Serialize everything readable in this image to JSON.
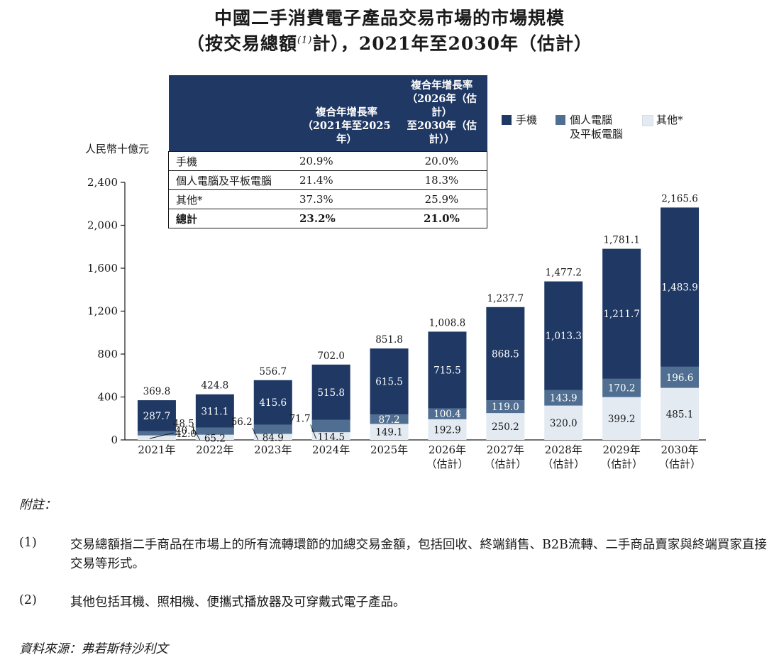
{
  "title": {
    "line1": "中國二手消費電子產品交易市場的市場規模",
    "line2_pre": "（按交易總額",
    "line2_sup": "(1)",
    "line2_post": "計），2021年至2030年（估計）"
  },
  "cagr_table": {
    "header_col1": "",
    "header_col2": "複合年增長率\n（2021年至2025年）",
    "header_col3": "複合年增長率\n（2026年（估計）\n至2030年（估計））",
    "rows": [
      {
        "label": "手機",
        "c1": "20.9%",
        "c2": "20.0%"
      },
      {
        "label": "個人電腦及平板電腦",
        "c1": "21.4%",
        "c2": "18.3%"
      },
      {
        "label": "其他*",
        "c1": "37.3%",
        "c2": "25.9%"
      },
      {
        "label": "總計",
        "c1": "23.2%",
        "c2": "21.0%"
      }
    ]
  },
  "legend": [
    {
      "label": "手機",
      "color": "#1f3864"
    },
    {
      "label": "個人電腦\n及平板電腦",
      "color": "#4f6e91"
    },
    {
      "label": "其他*",
      "color": "#e3eaf2"
    }
  ],
  "colors": {
    "phone": "#1f3864",
    "pc": "#4f6e91",
    "other": "#e3eaf2"
  },
  "chart_data": {
    "type": "bar",
    "stacked": true,
    "ylabel": "人民幣十億元",
    "ylim": [
      0,
      2400
    ],
    "yticks": [
      "0",
      "400",
      "800",
      "1,200",
      "1,600",
      "2,000",
      "2,400"
    ],
    "categories": [
      "2021年",
      "2022年",
      "2023年",
      "2024年",
      "2025年",
      "2026年\n（估計）",
      "2027年\n（估計）",
      "2028年\n（估計）",
      "2029年\n（估計）",
      "2030年\n（估計）"
    ],
    "series": [
      {
        "name": "其他*",
        "values": [
          42.0,
          48.5,
          56.2,
          71.7,
          149.1,
          192.9,
          250.2,
          320.0,
          399.2,
          485.1
        ]
      },
      {
        "name": "個人電腦及平板電腦",
        "values": [
          40.1,
          65.2,
          84.9,
          114.5,
          87.2,
          100.4,
          119.0,
          143.9,
          170.2,
          196.6
        ]
      },
      {
        "name": "手機",
        "values": [
          287.7,
          311.1,
          415.6,
          515.8,
          615.5,
          715.5,
          868.5,
          1013.3,
          1211.7,
          1483.9
        ]
      }
    ],
    "totals": [
      369.8,
      424.8,
      556.7,
      702.0,
      851.8,
      1008.8,
      1237.7,
      1477.2,
      1781.1,
      2165.6
    ],
    "value_labels": {
      "other": [
        "42.0",
        "48.5",
        "56.2",
        "71.7",
        "149.1",
        "192.9",
        "250.2",
        "320.0",
        "399.2",
        "485.1"
      ],
      "pc": [
        "40.1",
        "65.2",
        "84.9",
        "114.5",
        "87.2",
        "100.4",
        "119.0",
        "143.9",
        "170.2",
        "196.6"
      ],
      "phone": [
        "287.7",
        "311.1",
        "415.6",
        "515.8",
        "615.5",
        "715.5",
        "868.5",
        "1,013.3",
        "1,211.7",
        "1,483.9"
      ],
      "total": [
        "369.8",
        "424.8",
        "556.7",
        "702.0",
        "851.8",
        "1,008.8",
        "1,237.7",
        "1,477.2",
        "1,781.1",
        "2,165.6"
      ]
    }
  },
  "notes": {
    "heading": "附註：",
    "items": [
      {
        "num": "(1)",
        "text": "交易總額指二手商品在市場上的所有流轉環節的加總交易金額，包括回收、終端銷售、B2B流轉、二手商品賣家與終端買家直接交易等形式。"
      },
      {
        "num": "(2)",
        "text": "其他包括耳機、照相機、便攜式播放器及可穿戴式電子產品。"
      }
    ],
    "source": "資料來源：弗若斯特沙利文"
  }
}
